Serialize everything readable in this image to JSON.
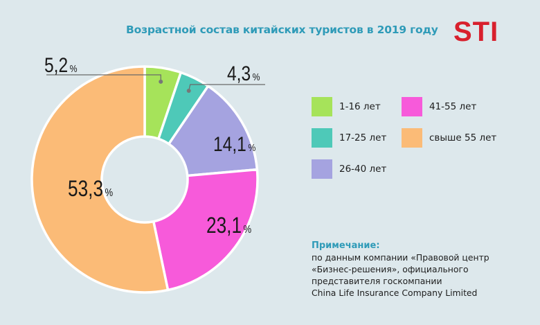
{
  "chart_data": {
    "type": "pie",
    "donut": true,
    "title": "Возрастной состав китайских туристов в 2019 году",
    "categories": [
      "1-16 лет",
      "17-25 лет",
      "26-40 лет",
      "41-55 лет",
      "свыше 55 лет"
    ],
    "values": [
      5.2,
      4.3,
      14.1,
      23.1,
      53.3
    ],
    "value_labels": [
      "5,2",
      "4,3",
      "14,1",
      "23,1",
      "53,3"
    ],
    "unit": "%",
    "colors": [
      "#a6e35a",
      "#4ec9b8",
      "#a5a3e0",
      "#f75ada",
      "#fbbb77"
    ],
    "legend_position": "right"
  },
  "logo": {
    "text": "STI",
    "color": "#d8202d"
  },
  "note": {
    "title": "Примечание:",
    "lines": [
      "по данным компании «Правовой центр",
      "«Бизнес-решения», официального",
      "представителя госкомпании",
      "China Life Insurance Company Limited"
    ]
  }
}
